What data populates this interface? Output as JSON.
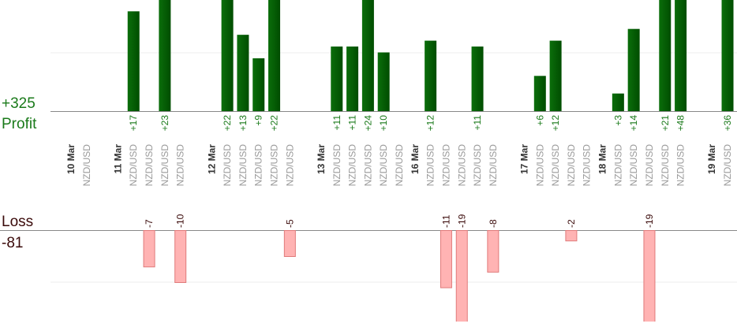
{
  "chart_data": {
    "type": "bar",
    "categories": [
      "10 Mar",
      "NZD/USD",
      null,
      "11 Mar",
      "NZD/USD",
      "NZD/USD",
      "NZD/USD",
      "NZD/USD",
      null,
      "12 Mar",
      "NZD/USD",
      "NZD/USD",
      "NZD/USD",
      "NZD/USD",
      "NZD/USD",
      null,
      "13 Mar",
      "NZD/USD",
      "NZD/USD",
      "NZD/USD",
      "NZD/USD",
      "NZD/USD",
      "16 Mar",
      "NZD/USD",
      "NZD/USD",
      "NZD/USD",
      "NZD/USD",
      "NZD/USD",
      null,
      "17 Mar",
      "NZD/USD",
      "NZD/USD",
      "NZD/USD",
      "NZD/USD",
      "18 Mar",
      "NZD/USD",
      "NZD/USD",
      "NZD/USD",
      "NZD/USD",
      "NZD/USD",
      null,
      "19 Mar",
      "NZD/USD"
    ],
    "series": [
      {
        "name": "Profit",
        "color": "#006400",
        "total": 325,
        "total_label": "+325",
        "values": [
          null,
          null,
          null,
          null,
          17,
          null,
          23,
          null,
          null,
          null,
          22,
          13,
          9,
          22,
          null,
          null,
          null,
          11,
          11,
          24,
          10,
          null,
          null,
          12,
          null,
          null,
          11,
          null,
          null,
          null,
          6,
          12,
          null,
          null,
          null,
          3,
          14,
          null,
          21,
          48,
          null,
          null,
          36
        ],
        "value_labels": [
          null,
          null,
          null,
          null,
          "+17",
          null,
          "+23",
          null,
          null,
          null,
          "+22",
          "+13",
          "+9",
          "+22",
          null,
          null,
          null,
          "+11",
          "+11",
          "+24",
          "+10",
          null,
          null,
          "+12",
          null,
          null,
          "+11",
          null,
          null,
          null,
          "+6",
          "+12",
          null,
          null,
          null,
          "+3",
          "+14",
          null,
          "+21",
          "+48",
          null,
          null,
          "+36"
        ]
      },
      {
        "name": "Loss",
        "color": "#ffb3b3",
        "total": -81,
        "values": [
          null,
          null,
          null,
          null,
          null,
          -7,
          null,
          -10,
          null,
          null,
          null,
          null,
          null,
          null,
          -5,
          null,
          null,
          null,
          null,
          null,
          null,
          null,
          null,
          null,
          -11,
          -19,
          null,
          -8,
          null,
          null,
          null,
          null,
          -2,
          null,
          null,
          null,
          null,
          -19,
          null,
          null,
          null,
          null,
          null
        ]
      }
    ]
  }
}
